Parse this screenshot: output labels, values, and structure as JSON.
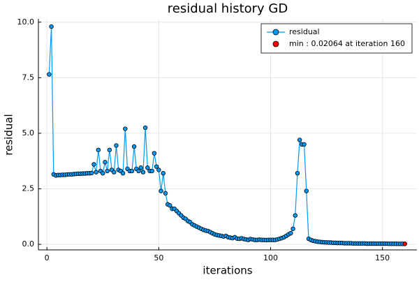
{
  "chart_data": {
    "type": "line",
    "title": "residual history GD",
    "x_label": "iterations",
    "y_label": "residual",
    "xlim": [
      -3.8,
      165.4
    ],
    "ylim": [
      -0.25,
      10.15
    ],
    "xticks": [
      0,
      50,
      100,
      150
    ],
    "yticks": [
      {
        "value": 0,
        "label": "0.0"
      },
      {
        "value": 2.5,
        "label": "2.5"
      },
      {
        "value": 5,
        "label": "5.0"
      },
      {
        "value": 7.5,
        "label": "7.5"
      },
      {
        "value": 10,
        "label": "10.0"
      }
    ],
    "grid": true,
    "legend": "top-right",
    "series": [
      {
        "name": "residual",
        "color": "#009af9",
        "x": [
          1,
          2,
          3,
          4,
          5,
          6,
          7,
          8,
          9,
          10,
          11,
          12,
          13,
          14,
          15,
          16,
          17,
          18,
          19,
          20,
          21,
          22,
          23,
          24,
          25,
          26,
          27,
          28,
          29,
          30,
          31,
          32,
          33,
          34,
          35,
          36,
          37,
          38,
          39,
          40,
          41,
          42,
          43,
          44,
          45,
          46,
          47,
          48,
          49,
          50,
          51,
          52,
          53,
          54,
          55,
          56,
          57,
          58,
          59,
          60,
          61,
          62,
          63,
          64,
          65,
          66,
          67,
          68,
          69,
          70,
          71,
          72,
          73,
          74,
          75,
          76,
          77,
          78,
          79,
          80,
          81,
          82,
          83,
          84,
          85,
          86,
          87,
          88,
          89,
          90,
          91,
          92,
          93,
          94,
          95,
          96,
          97,
          98,
          99,
          100,
          101,
          102,
          103,
          104,
          105,
          106,
          107,
          108,
          109,
          110,
          111,
          112,
          113,
          114,
          115,
          116,
          117,
          118,
          119,
          120,
          121,
          122,
          123,
          124,
          125,
          126,
          127,
          128,
          129,
          130,
          131,
          132,
          133,
          134,
          135,
          136,
          137,
          138,
          139,
          140,
          141,
          142,
          143,
          144,
          145,
          146,
          147,
          148,
          149,
          150,
          151,
          152,
          153,
          154,
          155,
          156,
          157,
          158,
          159,
          160
        ],
        "values": [
          7.65,
          9.8,
          3.15,
          3.1,
          3.12,
          3.12,
          3.13,
          3.13,
          3.14,
          3.15,
          3.15,
          3.16,
          3.17,
          3.18,
          3.18,
          3.19,
          3.19,
          3.2,
          3.2,
          3.21,
          3.6,
          3.25,
          4.25,
          3.3,
          3.2,
          3.7,
          3.3,
          4.25,
          3.35,
          3.25,
          4.45,
          3.35,
          3.3,
          3.2,
          5.2,
          3.4,
          3.3,
          3.3,
          4.4,
          3.4,
          3.3,
          3.45,
          3.25,
          5.25,
          3.45,
          3.3,
          3.3,
          4.1,
          3.5,
          3.35,
          2.4,
          3.2,
          2.3,
          1.8,
          1.75,
          1.6,
          1.6,
          1.5,
          1.4,
          1.3,
          1.2,
          1.15,
          1.05,
          1.0,
          0.9,
          0.85,
          0.8,
          0.75,
          0.7,
          0.65,
          0.62,
          0.6,
          0.55,
          0.5,
          0.45,
          0.42,
          0.4,
          0.38,
          0.35,
          0.38,
          0.32,
          0.3,
          0.28,
          0.32,
          0.26,
          0.25,
          0.27,
          0.24,
          0.22,
          0.2,
          0.24,
          0.22,
          0.2,
          0.2,
          0.21,
          0.2,
          0.2,
          0.19,
          0.2,
          0.2,
          0.2,
          0.2,
          0.22,
          0.25,
          0.28,
          0.32,
          0.38,
          0.45,
          0.5,
          0.7,
          1.3,
          3.2,
          4.7,
          4.5,
          4.5,
          2.4,
          0.25,
          0.2,
          0.16,
          0.14,
          0.12,
          0.11,
          0.1,
          0.09,
          0.09,
          0.08,
          0.08,
          0.07,
          0.07,
          0.06,
          0.06,
          0.06,
          0.05,
          0.05,
          0.05,
          0.05,
          0.04,
          0.04,
          0.04,
          0.04,
          0.04,
          0.04,
          0.03,
          0.03,
          0.03,
          0.03,
          0.03,
          0.03,
          0.03,
          0.03,
          0.03,
          0.03,
          0.025,
          0.025,
          0.025,
          0.025,
          0.022,
          0.022,
          0.021,
          0.02064
        ]
      },
      {
        "name": "min : 0.02064 at iteration 160",
        "color": "#ff0000",
        "x": [
          160
        ],
        "values": [
          0.02064
        ]
      }
    ]
  }
}
